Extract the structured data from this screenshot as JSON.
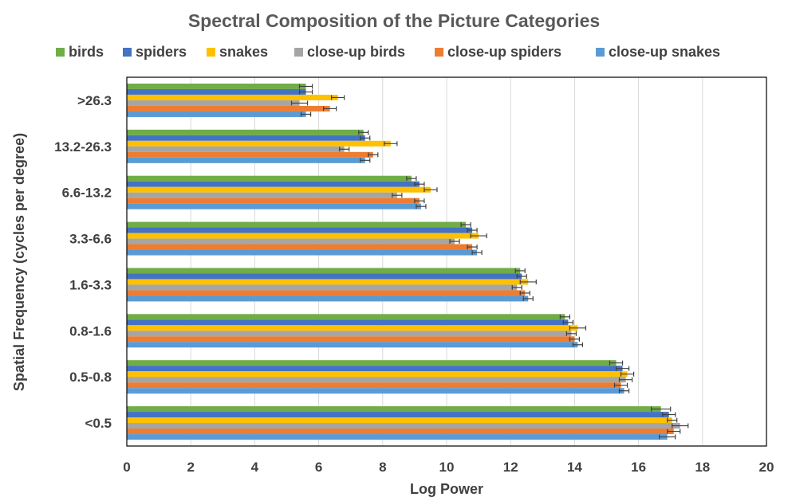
{
  "chart_data": {
    "type": "bar",
    "orientation": "horizontal",
    "title": "Spectral Composition of the Picture Categories",
    "xlabel": "Log Power",
    "ylabel": "Spatial Frequency (cycles per degree)",
    "xlim": [
      0,
      20
    ],
    "xticks": [
      0,
      2,
      4,
      6,
      8,
      10,
      12,
      14,
      16,
      18,
      20
    ],
    "grid": true,
    "legend_position": "top",
    "categories": [
      ">26.3",
      "13.2-26.3",
      "6.6-13.2",
      "3.3-6.6",
      "1.6-3.3",
      "0.8-1.6",
      "0.5-0.8",
      "<0.5"
    ],
    "series": [
      {
        "name": "birds",
        "color": "#70ad47",
        "values": [
          5.6,
          7.4,
          8.9,
          10.6,
          12.3,
          13.7,
          15.3,
          16.7
        ],
        "errors": [
          0.2,
          0.15,
          0.15,
          0.15,
          0.15,
          0.15,
          0.2,
          0.3
        ]
      },
      {
        "name": "spiders",
        "color": "#4472c4",
        "values": [
          5.6,
          7.45,
          9.15,
          10.8,
          12.35,
          13.8,
          15.5,
          16.95
        ],
        "errors": [
          0.2,
          0.15,
          0.15,
          0.15,
          0.15,
          0.15,
          0.2,
          0.2
        ]
      },
      {
        "name": "snakes",
        "color": "#ffc000",
        "values": [
          6.6,
          8.25,
          9.5,
          11.0,
          12.55,
          14.1,
          15.65,
          17.05
        ],
        "errors": [
          0.2,
          0.2,
          0.2,
          0.25,
          0.25,
          0.25,
          0.2,
          0.15
        ]
      },
      {
        "name": "close-up birds",
        "color": "#a5a5a5",
        "values": [
          5.4,
          6.8,
          8.45,
          10.25,
          12.2,
          13.9,
          15.6,
          17.3
        ],
        "errors": [
          0.25,
          0.15,
          0.15,
          0.15,
          0.15,
          0.15,
          0.2,
          0.25
        ]
      },
      {
        "name": "close-up spiders",
        "color": "#ed7d31",
        "values": [
          6.35,
          7.7,
          9.15,
          10.8,
          12.45,
          14.0,
          15.45,
          17.1
        ],
        "errors": [
          0.2,
          0.15,
          0.15,
          0.15,
          0.15,
          0.15,
          0.2,
          0.2
        ]
      },
      {
        "name": "close-up snakes",
        "color": "#5b9bd5",
        "values": [
          5.6,
          7.45,
          9.2,
          10.95,
          12.55,
          14.1,
          15.55,
          16.9
        ],
        "errors": [
          0.15,
          0.15,
          0.15,
          0.15,
          0.15,
          0.15,
          0.15,
          0.25
        ]
      }
    ]
  }
}
